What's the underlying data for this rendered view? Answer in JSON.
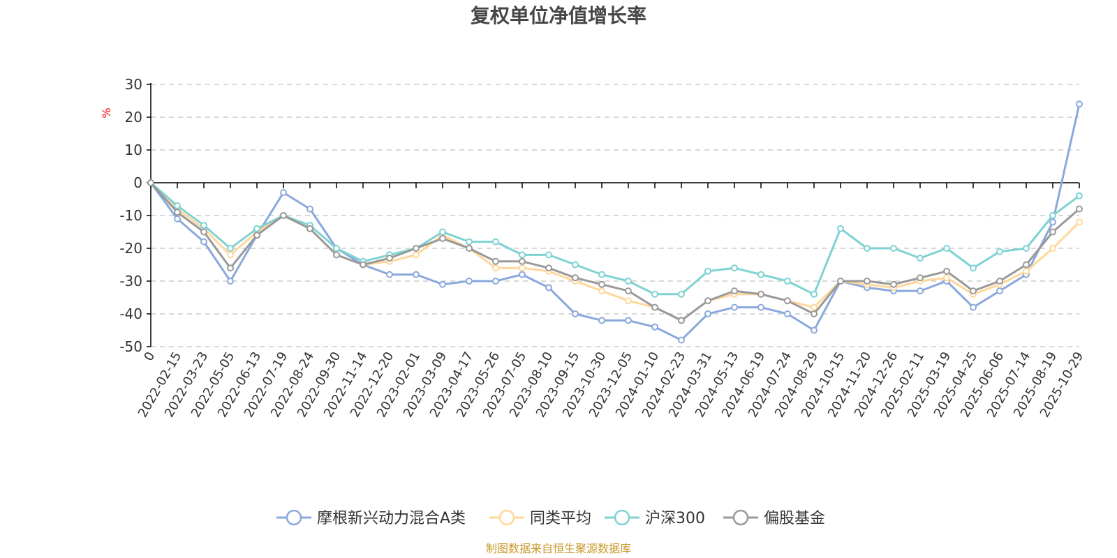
{
  "chart_data": {
    "type": "line",
    "title": "复权单位净值增长率",
    "ylabel": "%",
    "ylim": [
      -50,
      30
    ],
    "yticks": [
      30,
      20,
      10,
      0,
      -10,
      -20,
      -30,
      -40,
      -50
    ],
    "x_start_label": "0",
    "x_tick_labels": [
      "2022-02-15",
      "2022-03-23",
      "2022-05-05",
      "2022-06-13",
      "2022-07-19",
      "2022-08-24",
      "2022-09-30",
      "2022-11-14",
      "2022-12-20",
      "2023-02-01",
      "2023-03-09",
      "2023-04-17",
      "2023-05-26",
      "2023-07-05",
      "2023-08-10",
      "2023-09-15",
      "2023-10-30",
      "2023-12-05",
      "2024-01-10",
      "2024-02-23",
      "2024-03-31",
      "2024-05-13",
      "2024-06-19",
      "2024-07-24",
      "2024-08-29",
      "2024-10-15",
      "2024-11-20",
      "2024-12-26",
      "2025-02-11",
      "2025-03-19",
      "2025-04-25",
      "2025-06-06",
      "2025-07-14",
      "2025-08-19",
      "2025-10-29"
    ],
    "grid": true,
    "legend_position": "bottom",
    "x": [
      "0",
      "2022-02-15",
      "2022-03-23",
      "2022-05-05",
      "2022-06-13",
      "2022-07-19",
      "2022-08-24",
      "2022-09-30",
      "2022-11-14",
      "2022-12-20",
      "2023-02-01",
      "2023-03-09",
      "2023-04-17",
      "2023-05-26",
      "2023-07-05",
      "2023-08-10",
      "2023-09-15",
      "2023-10-30",
      "2023-12-05",
      "2024-01-10",
      "2024-02-23",
      "2024-03-31",
      "2024-05-13",
      "2024-06-19",
      "2024-07-24",
      "2024-08-29",
      "2024-10-15",
      "2024-11-20",
      "2024-12-26",
      "2025-02-11",
      "2025-03-19",
      "2025-04-25",
      "2025-06-06",
      "2025-07-14",
      "2025-08-19",
      "2025-10-29"
    ],
    "series": [
      {
        "name": "摩根新兴动力混合A类",
        "color": "#8aa8dc",
        "values": [
          0,
          -11,
          -18,
          -30,
          -16,
          -3,
          -8,
          -20,
          -25,
          -28,
          -28,
          -31,
          -30,
          -30,
          -28,
          -32,
          -40,
          -42,
          -42,
          -44,
          -48,
          -40,
          -38,
          -38,
          -40,
          -45,
          -30,
          -32,
          -33,
          -33,
          -30,
          -38,
          -33,
          -28,
          -12,
          24
        ]
      },
      {
        "name": "同类平均",
        "color": "#ffd79a",
        "values": [
          0,
          -8,
          -14,
          -22,
          -15,
          -10,
          -14,
          -22,
          -25,
          -24,
          -22,
          -16,
          -20,
          -26,
          -26,
          -27,
          -30,
          -33,
          -36,
          -38,
          -42,
          -36,
          -34,
          -34,
          -36,
          -38,
          -30,
          -31,
          -32,
          -30,
          -29,
          -34,
          -31,
          -27,
          -20,
          -12
        ]
      },
      {
        "name": "沪深300",
        "color": "#7fd2d2",
        "values": [
          0,
          -7,
          -13,
          -20,
          -14,
          -10,
          -13,
          -20,
          -24,
          -22,
          -20,
          -15,
          -18,
          -18,
          -22,
          -22,
          -25,
          -28,
          -30,
          -34,
          -34,
          -27,
          -26,
          -28,
          -30,
          -34,
          -14,
          -20,
          -20,
          -23,
          -20,
          -26,
          -21,
          -20,
          -10,
          -4
        ]
      },
      {
        "name": "偏股基金",
        "color": "#999999",
        "values": [
          0,
          -9,
          -15,
          -26,
          -16,
          -10,
          -14,
          -22,
          -25,
          -23,
          -20,
          -17,
          -20,
          -24,
          -24,
          -26,
          -29,
          -31,
          -33,
          -38,
          -42,
          -36,
          -33,
          -34,
          -36,
          -40,
          -30,
          -30,
          -31,
          -29,
          -27,
          -33,
          -30,
          -25,
          -15,
          -8
        ]
      }
    ]
  },
  "legend": {
    "items": [
      {
        "label": "摩根新兴动力混合A类",
        "color": "#8aa8dc"
      },
      {
        "label": "同类平均",
        "color": "#ffd79a"
      },
      {
        "label": "沪深300",
        "color": "#7fd2d2"
      },
      {
        "label": "偏股基金",
        "color": "#999999"
      }
    ]
  },
  "footer": {
    "source": "制图数据来自恒生聚源数据库"
  }
}
